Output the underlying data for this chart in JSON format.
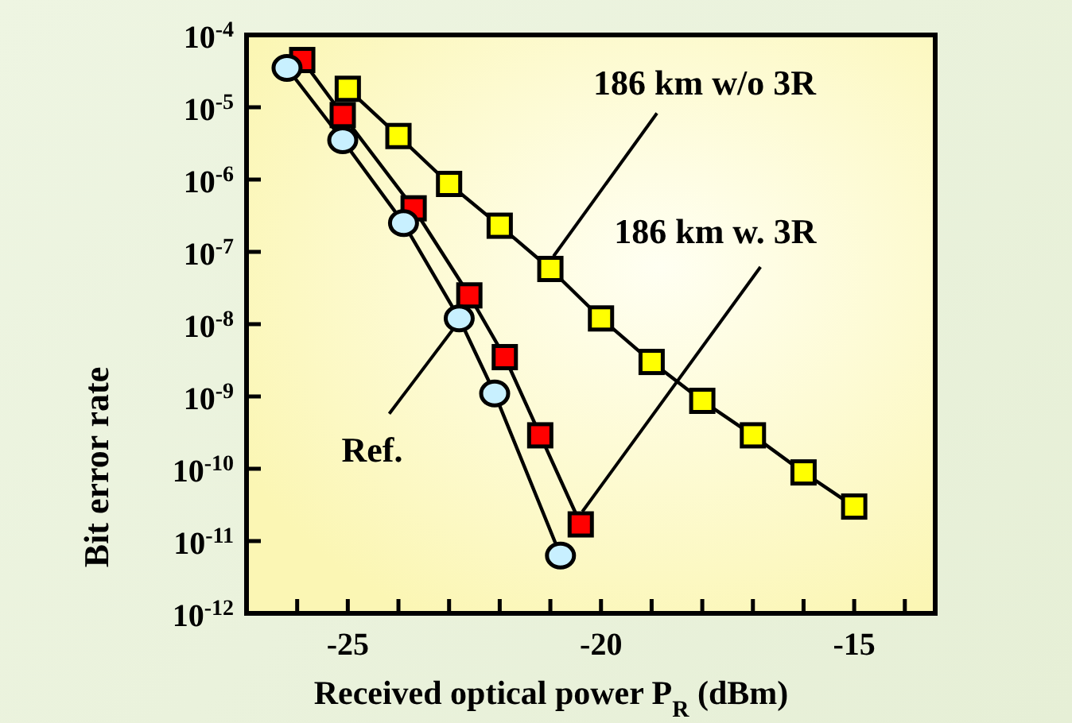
{
  "chart_data": {
    "type": "line",
    "xlabel": "Received optical power P$_{R}$ (dBm)",
    "ylabel": "Bit error rate",
    "xlim": [
      -27,
      -13.4
    ],
    "xticks": [
      {
        "value": -26,
        "label": null
      },
      {
        "value": -25,
        "label": "-25"
      },
      {
        "value": -24,
        "label": null
      },
      {
        "value": -23,
        "label": null
      },
      {
        "value": -22,
        "label": null
      },
      {
        "value": -21,
        "label": null
      },
      {
        "value": -20,
        "label": "-20"
      },
      {
        "value": -19,
        "label": null
      },
      {
        "value": -18,
        "label": null
      },
      {
        "value": -17,
        "label": null
      },
      {
        "value": -16,
        "label": null
      },
      {
        "value": -15,
        "label": "-15"
      },
      {
        "value": -14,
        "label": null
      }
    ],
    "log": true,
    "ylim": [
      1e-12,
      0.0001
    ],
    "yticks": [
      {
        "value": 0.0001,
        "label": "10$^{-4}$"
      },
      {
        "value": 1e-05,
        "label": "10$^{-5}$"
      },
      {
        "value": 1e-06,
        "label": "10$^{-6}$"
      },
      {
        "value": 1e-07,
        "label": "10$^{-7}$"
      },
      {
        "value": 1e-08,
        "label": "10$^{-8}$"
      },
      {
        "value": 1e-09,
        "label": "10$^{-9}$"
      },
      {
        "value": 1e-10,
        "label": "10$^{-10}$"
      },
      {
        "value": 1e-11,
        "label": "10$^{-11}$"
      },
      {
        "value": 1e-12,
        "label": "10$^{-12}$"
      }
    ],
    "line_style": "solid",
    "series": [
      {
        "color": "#ffff00",
        "marker": "square",
        "x": [
          -25,
          -24,
          -23,
          -22,
          -21,
          -20,
          -19,
          -18,
          -17,
          -16,
          -15
        ],
        "values": [
          1.8e-05,
          4e-06,
          8.7e-07,
          2.3e-07,
          5.8e-08,
          1.2e-08,
          3e-09,
          8.7e-10,
          2.9e-10,
          8.9e-11,
          3e-11
        ]
      },
      {
        "color": "#ff0000",
        "marker": "square",
        "x": [
          -25.9,
          -25.1,
          -23.7,
          -22.6,
          -21.9,
          -21.2,
          -20.4
        ],
        "values": [
          4.5e-05,
          7.8e-06,
          4e-07,
          2.5e-08,
          3.5e-09,
          2.9e-10,
          1.7e-11
        ]
      },
      {
        "color": "#c8f0ff",
        "marker": "circle",
        "x": [
          -26.2,
          -25.1,
          -23.9,
          -22.8,
          -22.1,
          -20.8
        ],
        "values": [
          3.5e-05,
          3.5e-06,
          2.5e-07,
          1.2e-08,
          1.1e-09,
          6.3e-12
        ]
      }
    ],
    "annotations": [
      {
        "text": "186 km w/o 3R",
        "x": -21,
        "y": 5.8e-08
      },
      {
        "text": "186 km w. 3R",
        "x": -20.4,
        "y": 1.7e-11
      },
      {
        "text": "Ref.",
        "x": -22.8,
        "y": 1.2e-08
      }
    ]
  }
}
